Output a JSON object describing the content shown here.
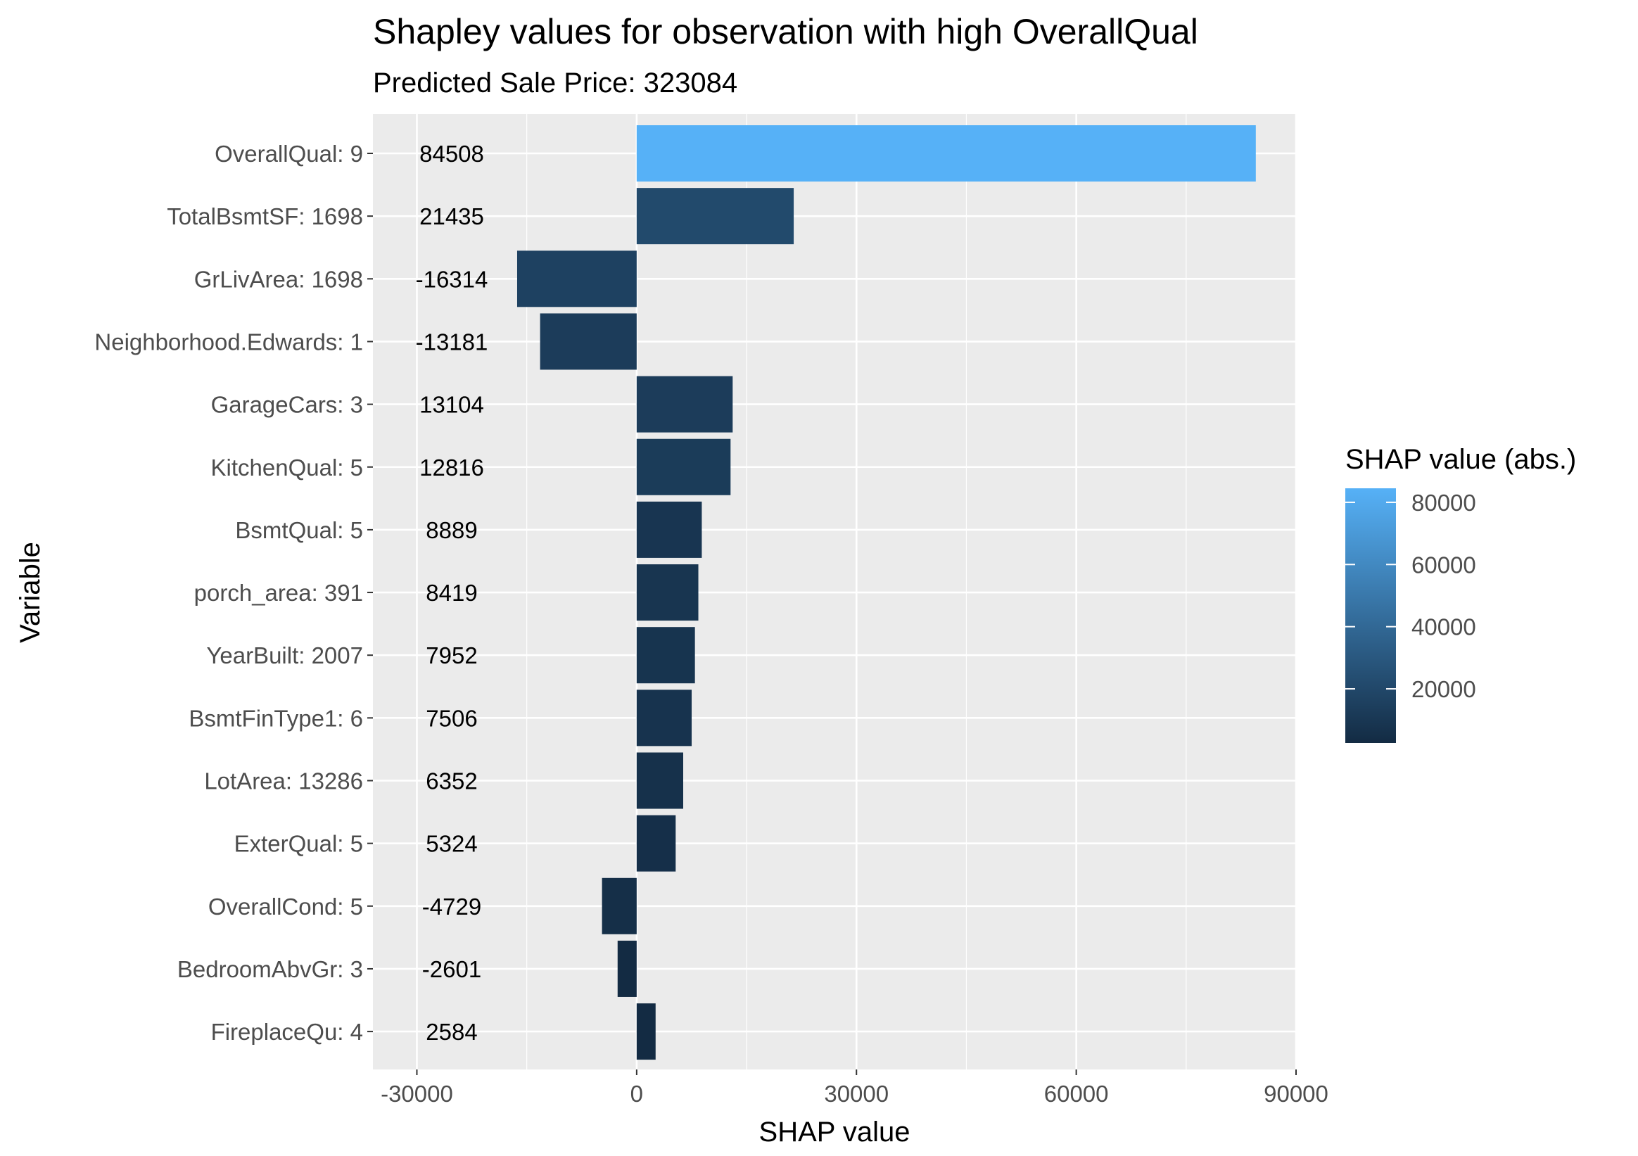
{
  "chart_data": {
    "type": "bar",
    "orientation": "horizontal",
    "title": "Shapley values for observation with high OverallQual",
    "subtitle": "Predicted Sale Price: 323084",
    "xlabel": "SHAP value",
    "ylabel": "Variable",
    "xlim": [
      -36000,
      90000
    ],
    "xticks": [
      -30000,
      0,
      30000,
      60000,
      90000
    ],
    "xtick_labels": [
      "-30000",
      "0",
      "30000",
      "60000",
      "90000"
    ],
    "grid": true,
    "categories": [
      "OverallQual: 9",
      "TotalBsmtSF: 1698",
      "GrLivArea: 1698",
      "Neighborhood.Edwards: 1",
      "GarageCars: 3",
      "KitchenQual: 5",
      "BsmtQual: 5",
      "porch_area: 391",
      "YearBuilt: 2007",
      "BsmtFinType1: 6",
      "LotArea: 13286",
      "ExterQual: 5",
      "OverallCond: 5",
      "BedroomAbvGr: 3",
      "FireplaceQu: 4"
    ],
    "values": [
      84508,
      21435,
      -16314,
      -13181,
      13104,
      12816,
      8889,
      8419,
      7952,
      7506,
      6352,
      5324,
      -4729,
      -2601,
      2584
    ],
    "value_labels": [
      "84508",
      "21435",
      "-16314",
      "-13181",
      "13104",
      "12816",
      "8889",
      "8419",
      "7952",
      "7506",
      "6352",
      "5324",
      "-4729",
      "-2601",
      "2584"
    ],
    "legend": {
      "title": "SHAP value (abs.)",
      "placement": "right",
      "range": [
        2584,
        84508
      ],
      "ticks": [
        20000,
        40000,
        60000,
        80000
      ],
      "tick_labels": [
        "20000",
        "40000",
        "60000",
        "80000"
      ],
      "color_low": "#132B43",
      "color_high": "#56B1F7"
    },
    "colors": {
      "panel_background": "#ebebeb",
      "grid": "#ffffff"
    }
  }
}
